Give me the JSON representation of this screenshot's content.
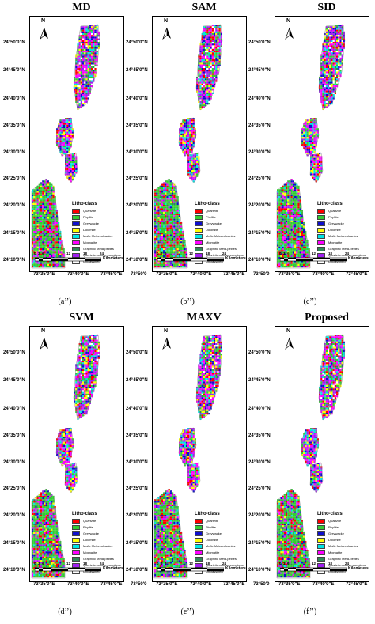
{
  "panels": [
    {
      "title": "MD",
      "caption": "(a’’)"
    },
    {
      "title": "SAM",
      "caption": "(b’’)"
    },
    {
      "title": "SID",
      "caption": "(c’’)"
    },
    {
      "title": "SVM",
      "caption": "(d’’)"
    },
    {
      "title": "MAXV",
      "caption": "(e’’)"
    },
    {
      "title": "Proposed",
      "caption": "(f’’)"
    }
  ],
  "north_label": "N",
  "latitude_labels": [
    "24°50'0\"N",
    "24°45'0\"N",
    "24°40'0\"N",
    "24°35'0\"N",
    "24°30'0\"N",
    "24°25'0\"N",
    "24°20'0\"N",
    "24°15'0\"N",
    "24°10'0\"N"
  ],
  "longitude_labels": [
    "73°35'0\"E",
    "73°40'0\"E",
    "73°45'0\"E",
    "73°50'0"
  ],
  "legend": {
    "title": "Litho-class",
    "classes": [
      {
        "label": "Quartzite",
        "color": "#ff0000"
      },
      {
        "label": "Phyllite",
        "color": "#33cc33"
      },
      {
        "label": "Greywacke",
        "color": "#1010cc"
      },
      {
        "label": "Dolomite",
        "color": "#ffff00"
      },
      {
        "label": "Mafic Meta-volcanics",
        "color": "#00e5e5"
      },
      {
        "label": "Migmatite",
        "color": "#ff00ff"
      },
      {
        "label": "Graphitic Meta-pelites",
        "color": "#2e8b57"
      },
      {
        "label": "Quartzite-arkose-conglome",
        "color": "#a020f0"
      },
      {
        "label": "Unclassified",
        "color": "#ffffff"
      }
    ]
  },
  "scale": {
    "ticks": [
      "0",
      "3",
      "6",
      "12",
      "18",
      "24"
    ],
    "unit": "Kilometers",
    "unit_truncated": "Kilometers"
  },
  "colors": {
    "frame": "#000000"
  }
}
